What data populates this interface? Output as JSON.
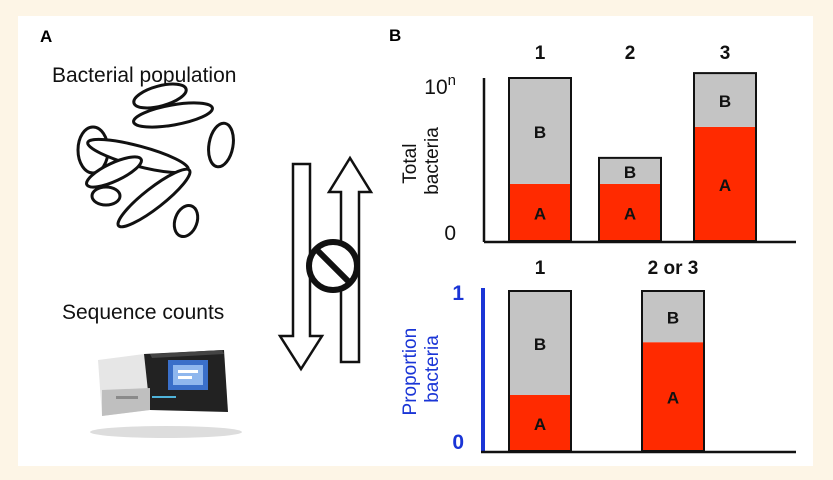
{
  "figure": {
    "panel_a": {
      "label": "A",
      "top_caption": "Bacterial population",
      "bottom_caption": "Sequence counts"
    },
    "panel_b": {
      "label": "B",
      "top_chart": {
        "y_label_line1": "Total",
        "y_label_line2": "bacteria",
        "y_top_tick_base": "10",
        "y_top_tick_exp": "n",
        "y_bottom_tick": "0",
        "bars": [
          {
            "label": "1",
            "a_label": "A",
            "b_label": "B"
          },
          {
            "label": "2",
            "a_label": "A",
            "b_label": "B"
          },
          {
            "label": "3",
            "a_label": "A",
            "b_label": "B"
          }
        ]
      },
      "bottom_chart": {
        "y_label_line1": "Proportion",
        "y_label_line2": "bacteria",
        "y_top_tick": "1",
        "y_bottom_tick": "0",
        "bars": [
          {
            "label": "1",
            "a_label": "A",
            "b_label": "B"
          },
          {
            "label": "2 or 3",
            "a_label": "A",
            "b_label": "B"
          }
        ]
      }
    },
    "colors": {
      "page_bg": "#fdf5e6",
      "panel_bg": "#ffffff",
      "species_a": "#ff2a00",
      "species_b": "#c4c4c4",
      "proportion_axis": "#1a35d6"
    },
    "icons": [
      "bacteria-cells-illustration",
      "sequencer-machine-illustration",
      "prohibited-icon",
      "down-arrow",
      "up-arrow"
    ]
  },
  "chart_data": [
    {
      "type": "bar",
      "stacked": true,
      "categories": [
        "1",
        "2",
        "3"
      ],
      "series": [
        {
          "name": "A",
          "values": [
            0.35,
            0.35,
            0.7
          ]
        },
        {
          "name": "B",
          "values": [
            0.65,
            0.16,
            0.33
          ]
        }
      ],
      "ylabel": "Total bacteria",
      "ylim": [
        0,
        1
      ]
    },
    {
      "type": "bar",
      "stacked": true,
      "categories": [
        "1",
        "2 or 3"
      ],
      "series": [
        {
          "name": "A",
          "values": [
            0.35,
            0.68
          ]
        },
        {
          "name": "B",
          "values": [
            0.65,
            0.32
          ]
        }
      ],
      "ylabel": "Proportion bacteria",
      "ylim": [
        0,
        1
      ]
    }
  ]
}
